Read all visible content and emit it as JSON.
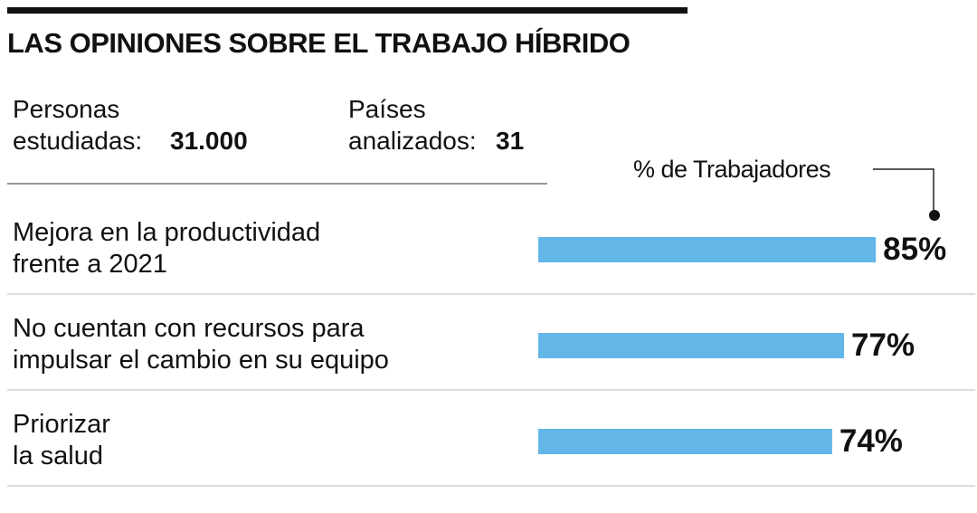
{
  "title": "LAS OPINIONES SOBRE EL TRABAJO HÍBRIDO",
  "stats": [
    {
      "label": "Personas\nestudiadas:",
      "value": "31.000"
    },
    {
      "label": "Países\nanalizados:",
      "value": "31"
    }
  ],
  "chart_data": {
    "type": "bar",
    "orientation": "horizontal",
    "annotation": "% de Trabajadores",
    "categories": [
      "Mejora en la productividad\nfrente a 2021",
      "No cuentan con recursos para\nimpulsar el cambio en su equipo",
      "Priorizar\nla salud"
    ],
    "values": [
      85,
      77,
      74
    ],
    "value_labels": [
      "85%",
      "77%",
      "74%"
    ],
    "color": "#62b6e8"
  }
}
